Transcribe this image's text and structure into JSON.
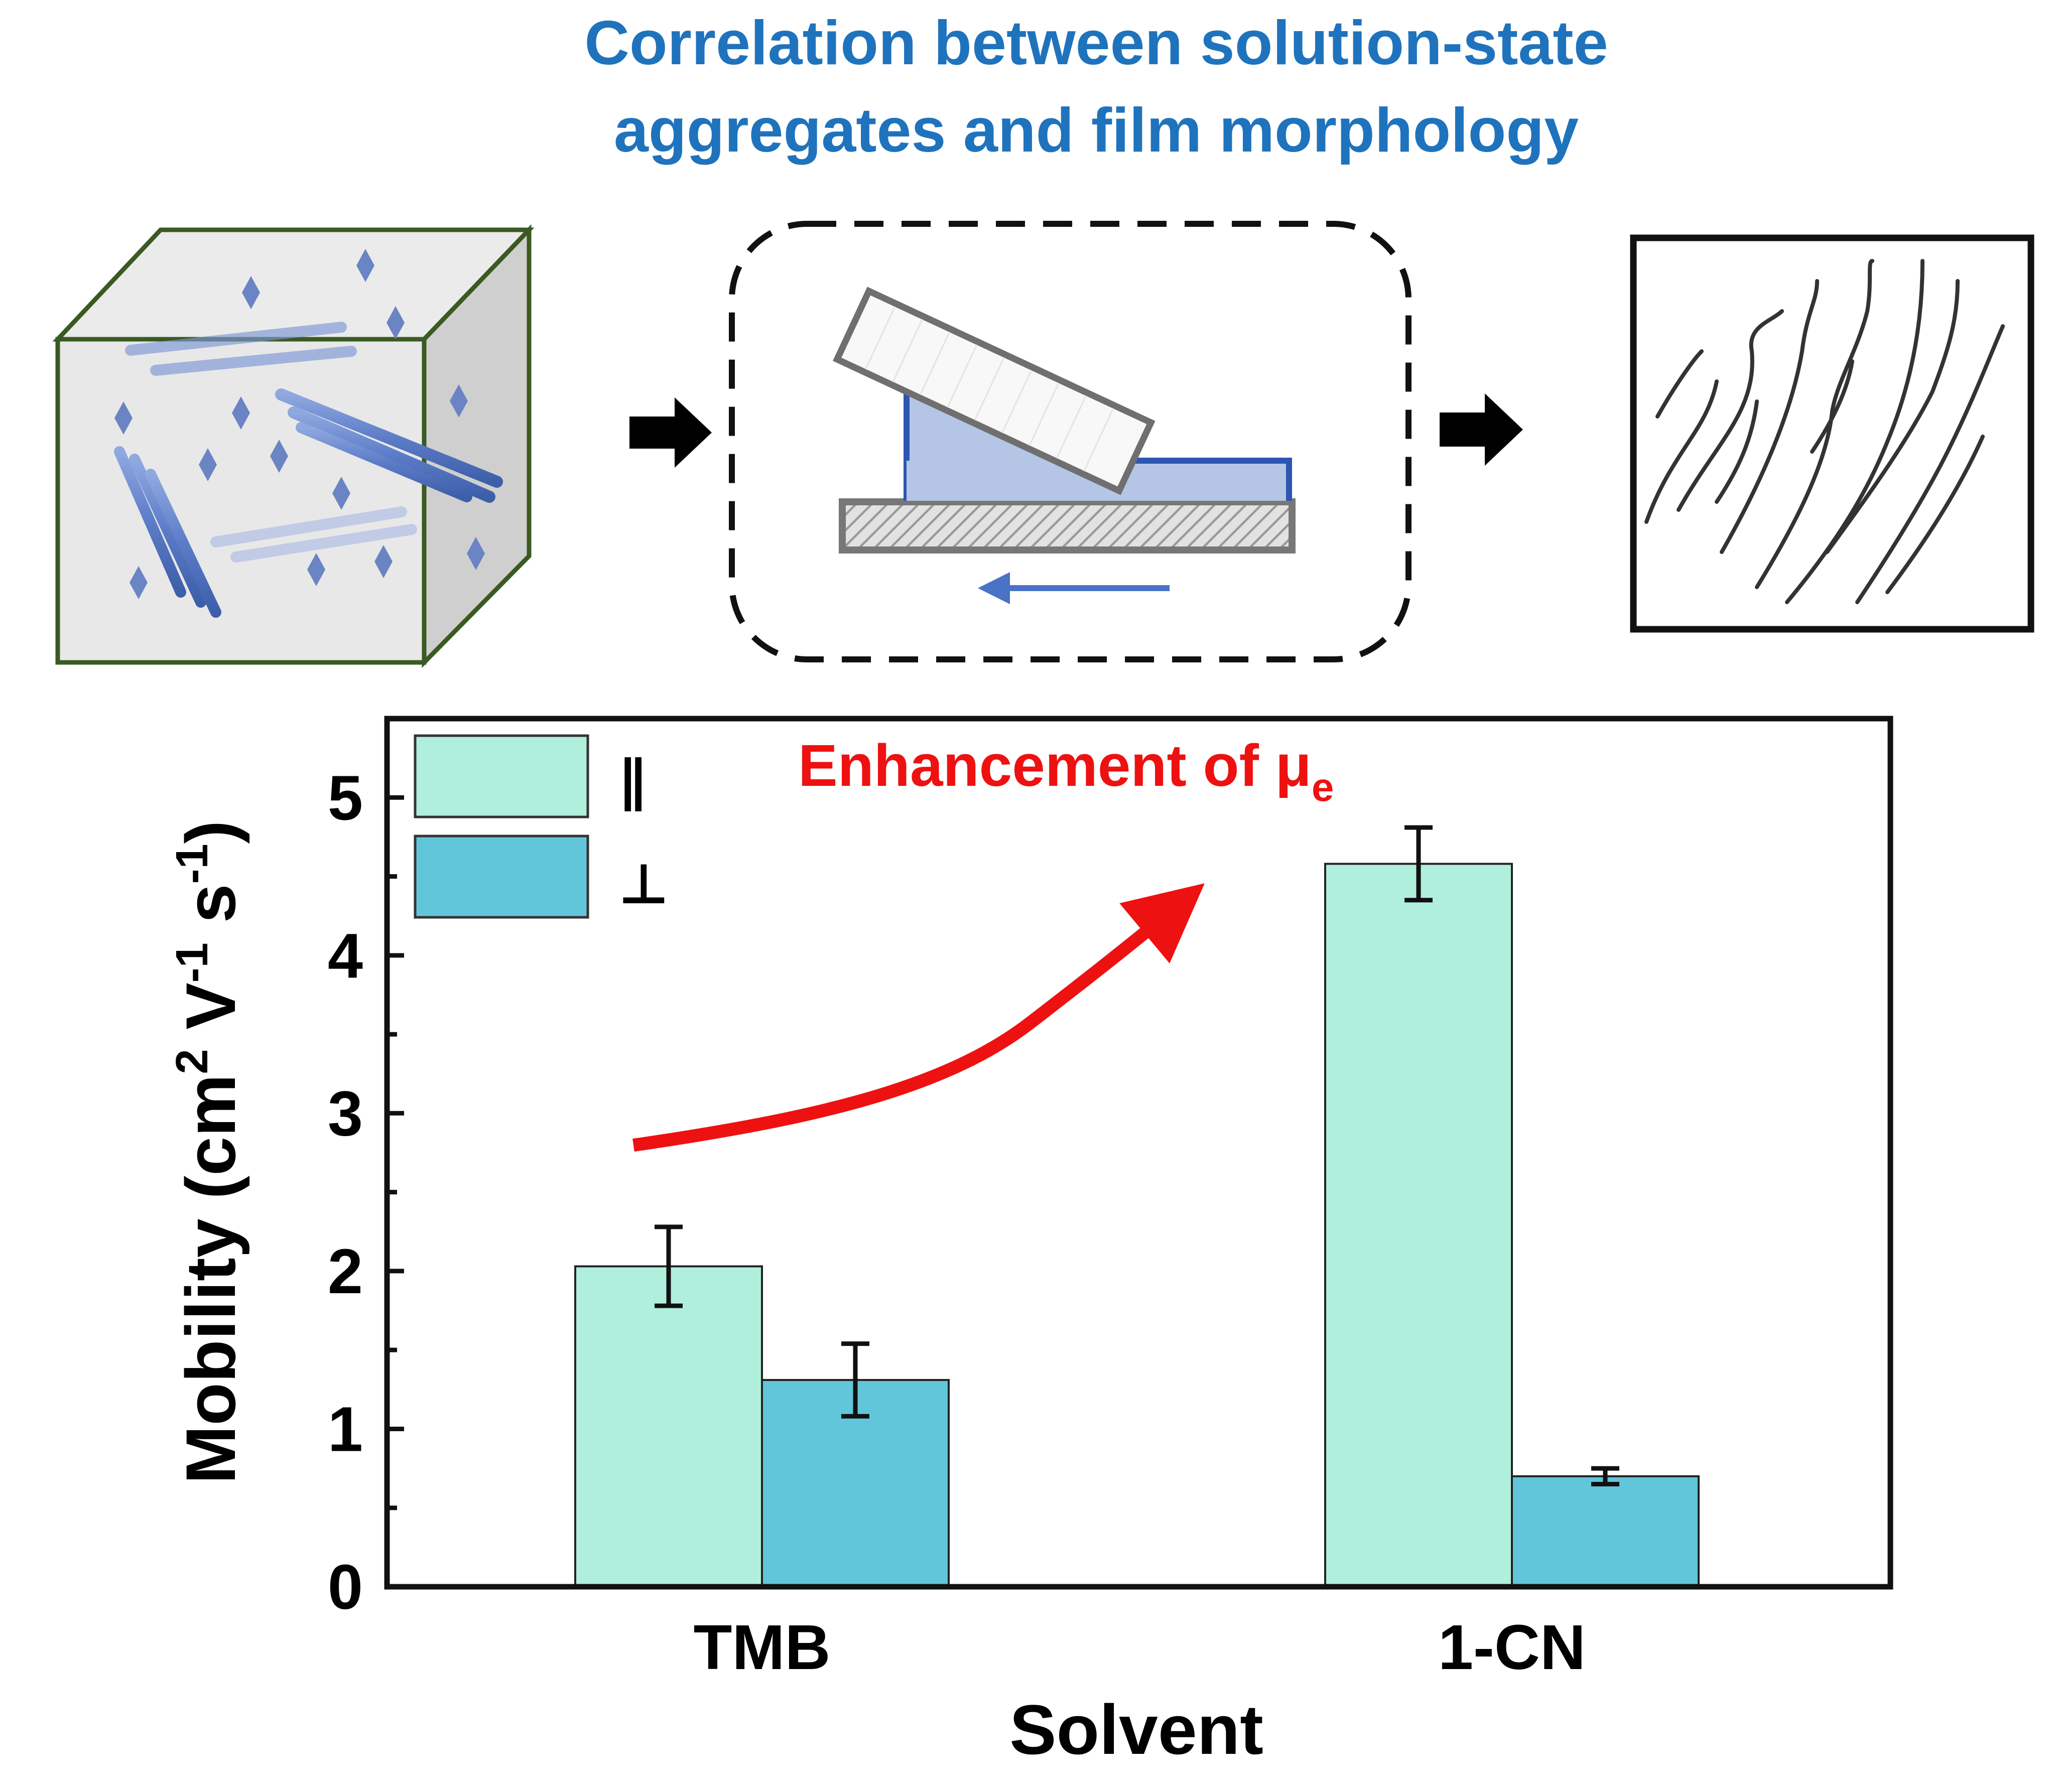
{
  "header": {
    "title_line1": "Correlation between solution-state",
    "title_line2": "aggregates and film morphology"
  },
  "schematic": {
    "solution_box_icon": "solution-aggregates-cube-icon",
    "coating_icon": "blade-coating-icon",
    "film_icon": "aligned-film-morphology-icon",
    "arrow_icon": "right-arrow-icon"
  },
  "chart_data": {
    "type": "bar",
    "categories": [
      "TMB",
      "1-CN"
    ],
    "series": [
      {
        "name": "∥",
        "color": "#b0efdc",
        "values": [
          2.03,
          4.58
        ],
        "errors": [
          0.25,
          0.23
        ]
      },
      {
        "name": "⊥",
        "color": "#62c6da",
        "values": [
          1.31,
          0.7
        ],
        "errors": [
          0.23,
          0.05
        ]
      }
    ],
    "xlabel": "Solvent",
    "ylabel_parts": {
      "main": "Mobility (cm",
      "sup1": "2",
      "v": " V",
      "sup2": "-1",
      "s": " s",
      "sup3": "-1",
      "close": ")"
    },
    "ylim": [
      0,
      5.5
    ],
    "yticks": [
      "0",
      "1",
      "2",
      "3",
      "4",
      "5"
    ],
    "annotation": {
      "text": "Enhancement of  μ",
      "subscript": "e",
      "color": "#ee1111"
    },
    "legend_position": "top-left",
    "grid": false
  }
}
